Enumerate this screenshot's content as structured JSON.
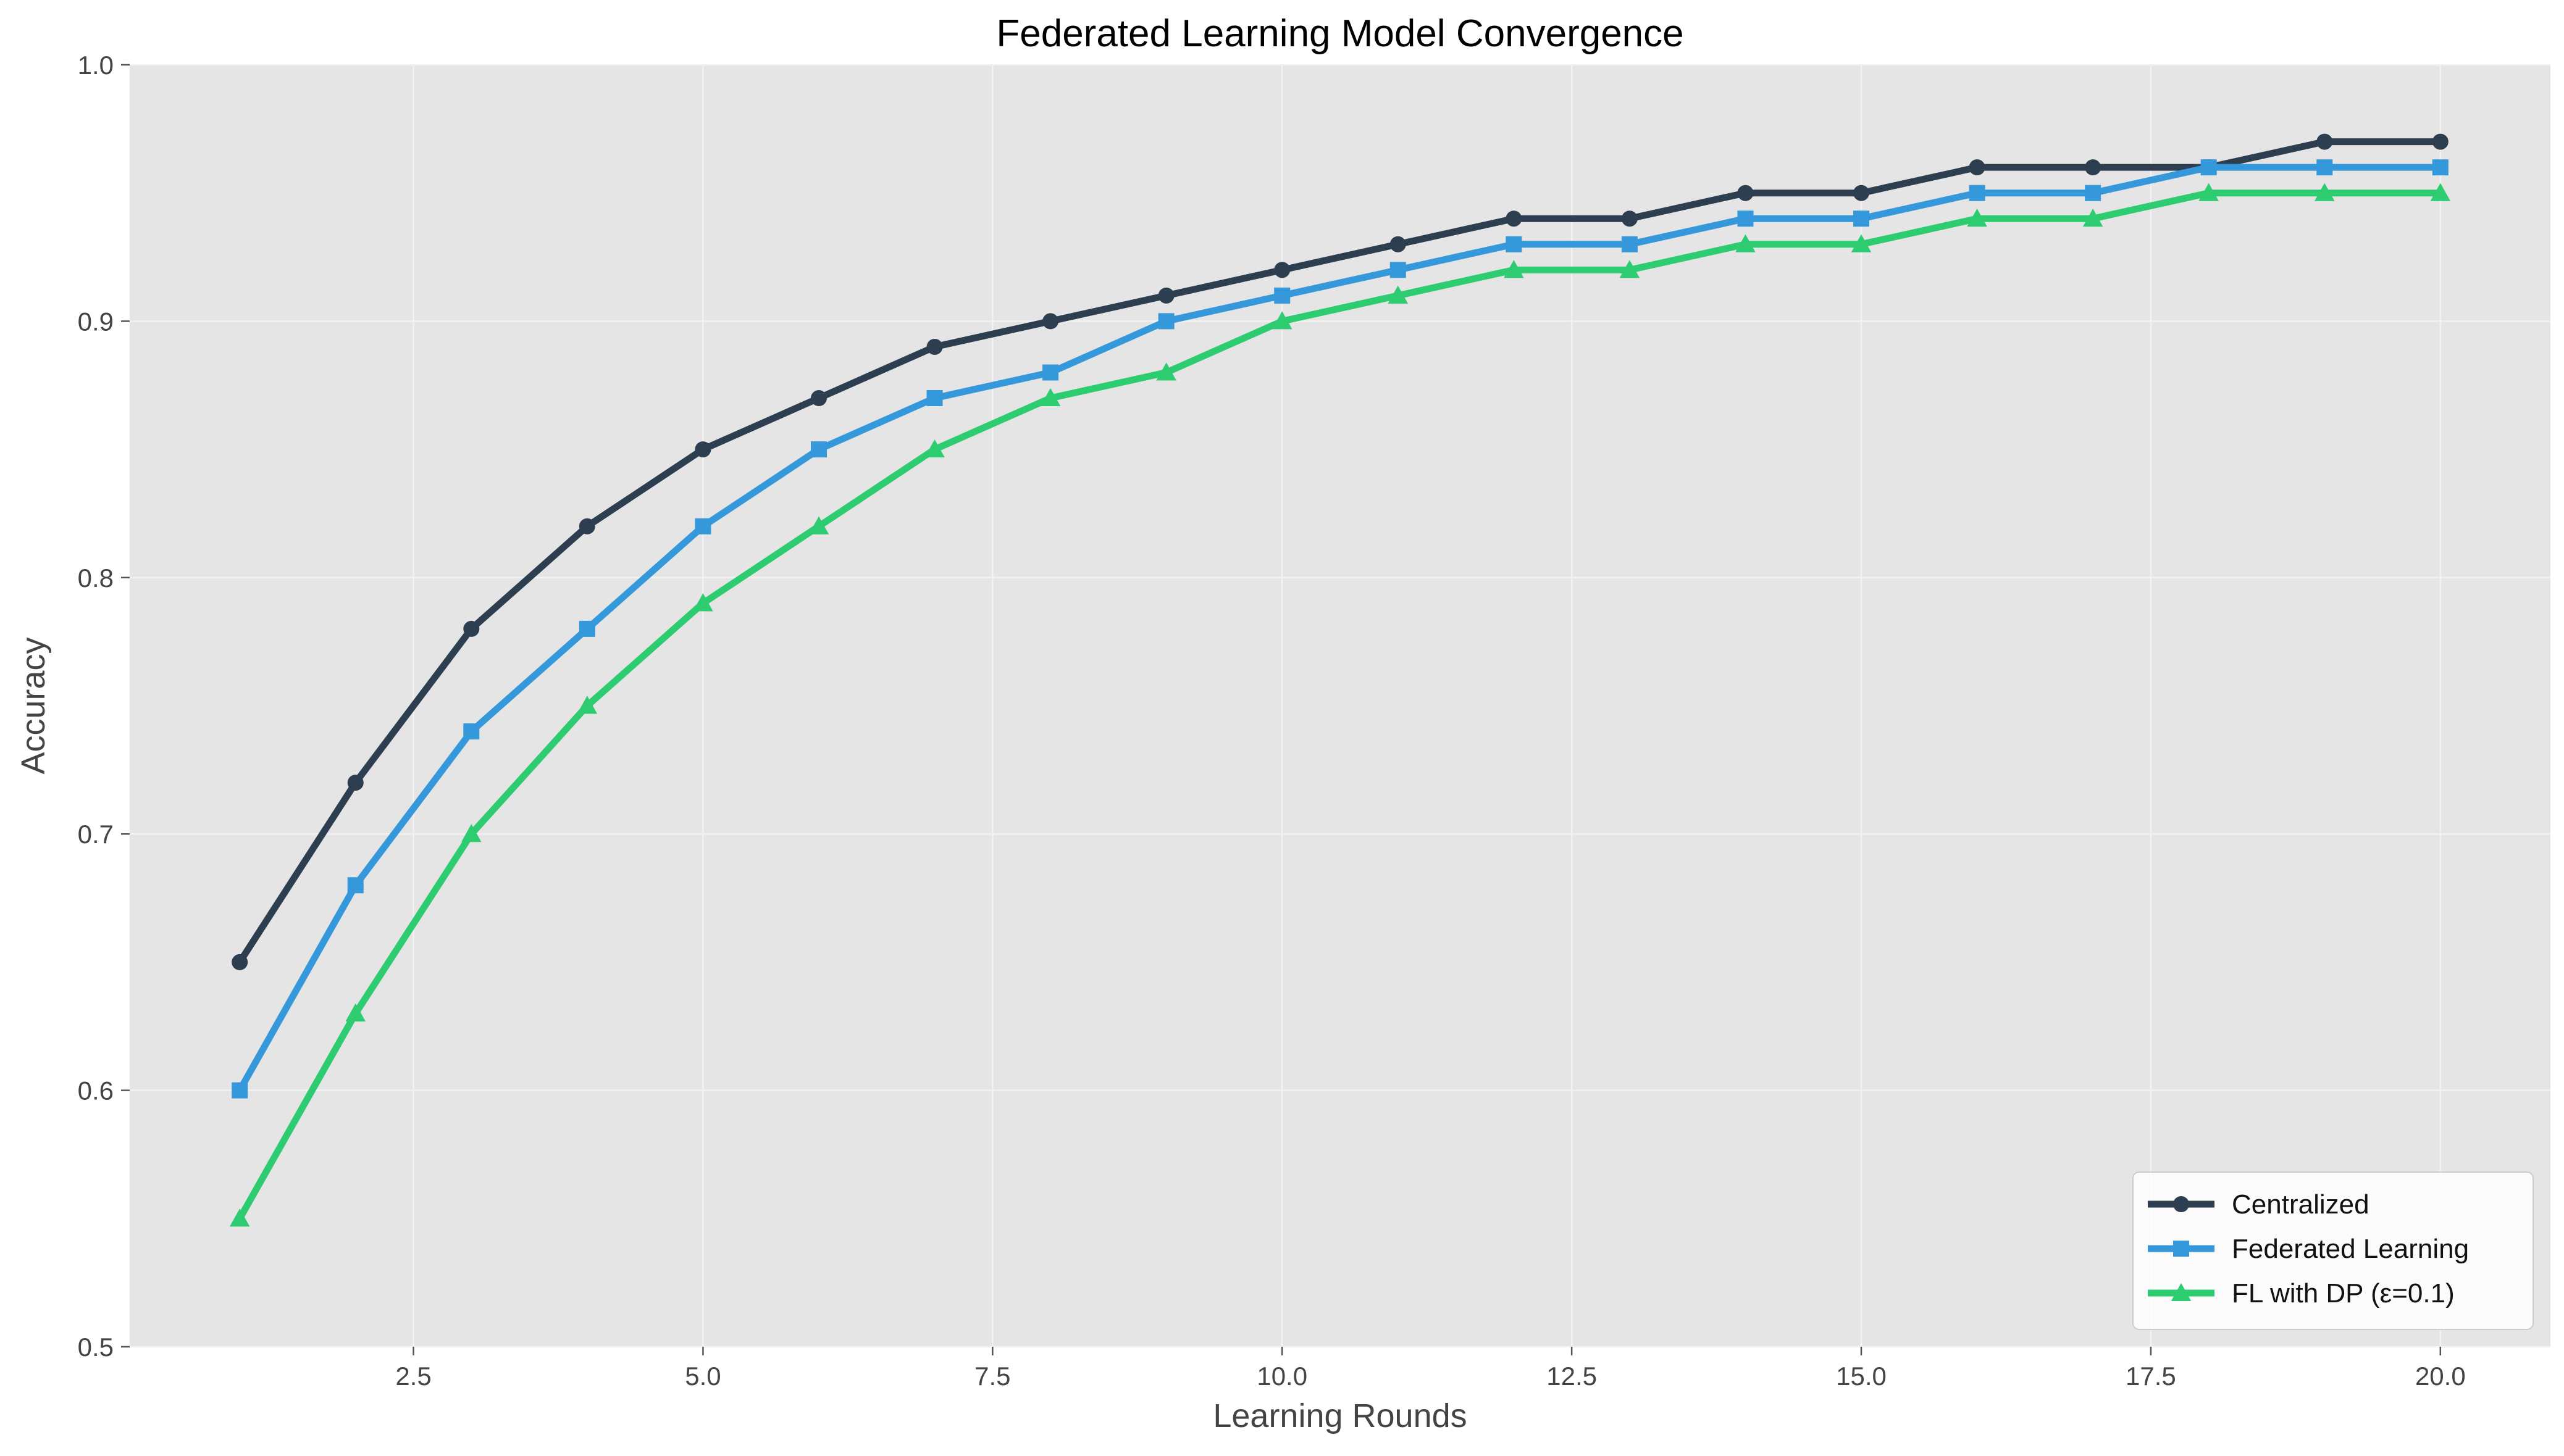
{
  "chart_data": {
    "type": "line",
    "title": "Federated Learning Model Convergence",
    "xlabel": "Learning Rounds",
    "ylabel": "Accuracy",
    "xlim": [
      0.05,
      20.95
    ],
    "ylim": [
      0.5,
      1.0
    ],
    "x_ticks": [
      2.5,
      5.0,
      7.5,
      10.0,
      12.5,
      15.0,
      17.5,
      20.0
    ],
    "x_tick_labels": [
      "2.5",
      "5.0",
      "7.5",
      "10.0",
      "12.5",
      "15.0",
      "17.5",
      "20.0"
    ],
    "y_ticks": [
      0.5,
      0.6,
      0.7,
      0.8,
      0.9,
      1.0
    ],
    "y_tick_labels": [
      "0.5",
      "0.6",
      "0.7",
      "0.8",
      "0.9",
      "1.0"
    ],
    "grid": true,
    "legend_position": "lower-right",
    "x": [
      1,
      2,
      3,
      4,
      5,
      6,
      7,
      8,
      9,
      10,
      11,
      12,
      13,
      14,
      15,
      16,
      17,
      18,
      19,
      20
    ],
    "series": [
      {
        "name": "Centralized",
        "color": "#2c3e50",
        "marker": "circle",
        "values": [
          0.65,
          0.72,
          0.78,
          0.82,
          0.85,
          0.87,
          0.89,
          0.9,
          0.91,
          0.92,
          0.93,
          0.94,
          0.94,
          0.95,
          0.95,
          0.96,
          0.96,
          0.96,
          0.97,
          0.97
        ]
      },
      {
        "name": "Federated Learning",
        "color": "#3498db",
        "marker": "square",
        "values": [
          0.6,
          0.68,
          0.74,
          0.78,
          0.82,
          0.85,
          0.87,
          0.88,
          0.9,
          0.91,
          0.92,
          0.93,
          0.93,
          0.94,
          0.94,
          0.95,
          0.95,
          0.96,
          0.96,
          0.96
        ]
      },
      {
        "name": "FL with DP (ε=0.1)",
        "color": "#2ecc71",
        "marker": "triangle",
        "values": [
          0.55,
          0.63,
          0.7,
          0.75,
          0.79,
          0.82,
          0.85,
          0.87,
          0.88,
          0.9,
          0.91,
          0.92,
          0.92,
          0.93,
          0.93,
          0.94,
          0.94,
          0.95,
          0.95,
          0.95
        ]
      }
    ]
  }
}
